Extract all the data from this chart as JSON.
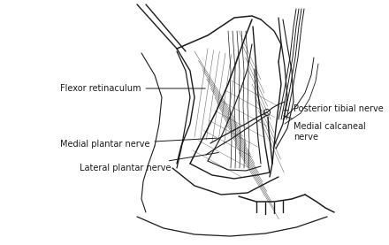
{
  "background_color": "#ffffff",
  "labels": {
    "flexor_retinaculum": "Flexor retinaculum",
    "posterior_tibial_nerve": "Posterior tibial nerve",
    "medial_calcaneal_nerve": "Medial calcaneal\nnerve",
    "medial_plantar_nerve": "Medial plantar nerve",
    "lateral_plantar_nerve": "Lateral plantar nerve"
  },
  "line_color": "#1a1a1a",
  "font_size": 7.0
}
